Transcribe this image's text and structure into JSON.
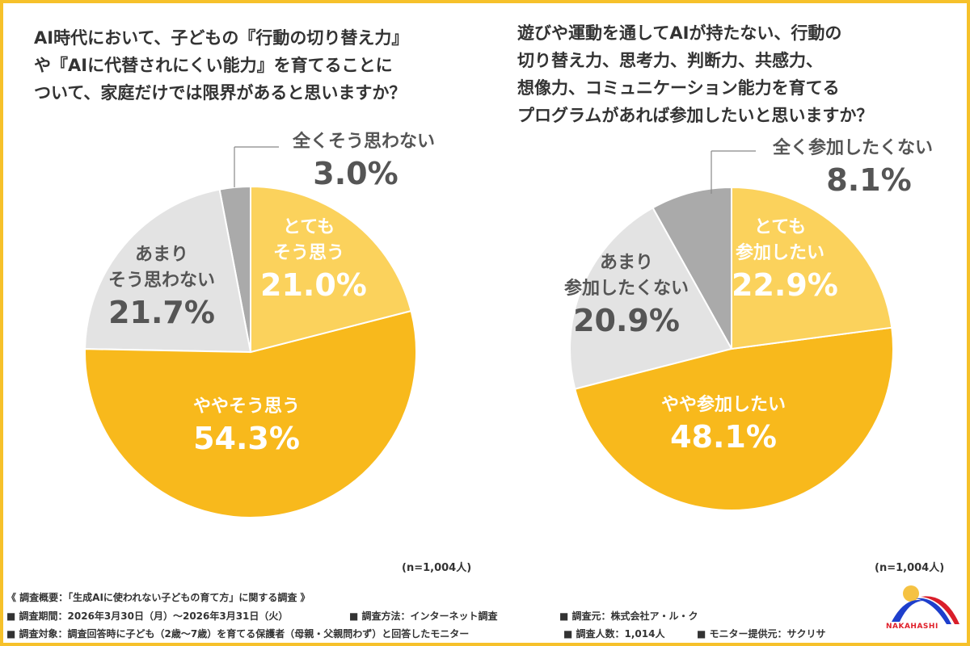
{
  "colors": {
    "frame": "#F6C12A",
    "light_yellow": "#FBD25C",
    "dark_yellow": "#F8B91C",
    "light_gray": "#E3E3E3",
    "dark_gray": "#AAAAAA",
    "logo_sun": "#F5C242",
    "logo_blue": "#1E3FCC",
    "logo_red": "#D91E2A"
  },
  "chart_data": [
    {
      "type": "pie",
      "title": "AI時代において、子どもの『行動の切り替え力』\nや『AIに代替されにくい能力』を育てることに\nついて、家庭だけでは限界があると思いますか？",
      "start": "12 o'clock",
      "direction": "clockwise",
      "slices": [
        {
          "label": "とても\nそう思う",
          "value": 21.0,
          "value_text": "21.0%",
          "color": "#FBD25C"
        },
        {
          "label": "ややそう思う",
          "value": 54.3,
          "value_text": "54.3%",
          "color": "#F8B91C"
        },
        {
          "label": "あまり\nそう思わない",
          "value": 21.7,
          "value_text": "21.7%",
          "color": "#E3E3E3"
        },
        {
          "label": "全くそう思わない",
          "value": 3.0,
          "value_text": "3.0%",
          "color": "#AAAAAA"
        }
      ],
      "note": "(n=1,004人)"
    },
    {
      "type": "pie",
      "title": "遊びや運動を通してAIが持たない、行動の\n切り替え力、思考力、判断力、共感力、\n想像力、コミュニケーション能力を育てる\nプログラムがあれば参加したいと思いますか？",
      "start": "12 o'clock",
      "direction": "clockwise",
      "slices": [
        {
          "label": "とても\n参加したい",
          "value": 22.9,
          "value_text": "22.9%",
          "color": "#FBD25C"
        },
        {
          "label": "やや参加したい",
          "value": 48.1,
          "value_text": "48.1%",
          "color": "#F8B91C"
        },
        {
          "label": "あまり\n参加したくない",
          "value": 20.9,
          "value_text": "20.9%",
          "color": "#E3E3E3"
        },
        {
          "label": "全く参加したくない",
          "value": 8.1,
          "value_text": "8.1%",
          "color": "#AAAAAA"
        }
      ],
      "note": "(n=1,004人)"
    }
  ],
  "footer": {
    "heading": "《 調査概要：「生成AIに使われない子どもの育て方」に関する調査 》",
    "period": "■ 調査期間：2026年3月30日（月）～2026年3月31日（火）",
    "method": "■ 調査方法：インターネット調査",
    "organizer": "■ 調査元：株式会社ア・ル・ク",
    "target": "■ 調査対象：調査回答時に子ども（2歳～7歳）を育てる保護者（母親・父親問わず）と回答したモニター",
    "count": "■ 調査人数：1,014人",
    "provider": "■ モニター提供元：サクリサ"
  },
  "logo": {
    "text": "NAKAHASHI"
  }
}
